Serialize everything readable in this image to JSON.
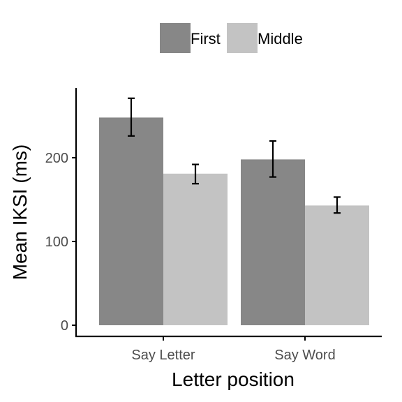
{
  "chart_data": {
    "type": "bar",
    "title": "",
    "xlabel": "Letter position",
    "ylabel": "Mean IKSI (ms)",
    "categories": [
      "Say Letter",
      "Say Word"
    ],
    "series": [
      {
        "name": "First",
        "color": "#878787",
        "values": [
          248,
          198
        ],
        "error_low": [
          226,
          177
        ],
        "error_high": [
          271,
          220
        ]
      },
      {
        "name": "Middle",
        "color": "#c3c3c3",
        "values": [
          181,
          143
        ],
        "error_low": [
          169,
          134
        ],
        "error_high": [
          192,
          153
        ]
      }
    ],
    "yticks": [
      0,
      100,
      200
    ],
    "ylim": [
      -8,
      283
    ],
    "grid": false,
    "legend_position": "top"
  }
}
